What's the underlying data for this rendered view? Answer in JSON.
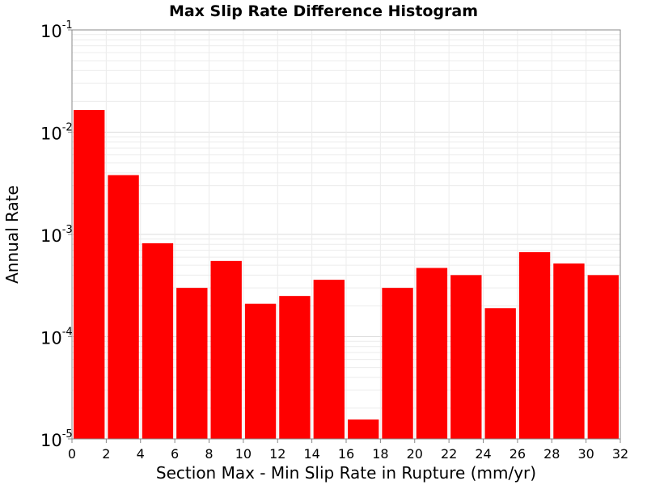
{
  "chart_data": {
    "type": "bar",
    "title": "Max Slip Rate Difference Histogram",
    "xlabel": "Section Max - Min Slip Rate in Rupture (mm/yr)",
    "ylabel": "Annual Rate",
    "xlim": [
      0,
      32
    ],
    "ylim": [
      1e-05,
      0.1
    ],
    "yscale": "log",
    "bin_width": 2,
    "x_ticks": [
      0,
      2,
      4,
      6,
      8,
      10,
      12,
      14,
      16,
      18,
      20,
      22,
      24,
      26,
      28,
      30,
      32
    ],
    "x_tick_labels": [
      "0",
      "2",
      "4",
      "6",
      "8",
      "10",
      "12",
      "14",
      "16",
      "18",
      "20",
      "22",
      "24",
      "26",
      "28",
      "30",
      "32"
    ],
    "y_ticks": [
      {
        "base": "10",
        "exp": "-1",
        "value": 0.1
      },
      {
        "base": "10",
        "exp": "-2",
        "value": 0.01
      },
      {
        "base": "10",
        "exp": "-3",
        "value": 0.001
      },
      {
        "base": "10",
        "exp": "-4",
        "value": 0.0001
      },
      {
        "base": "10",
        "exp": "-5",
        "value": 1e-05
      }
    ],
    "categories": [
      "0-2",
      "2-4",
      "4-6",
      "6-8",
      "8-10",
      "10-12",
      "12-14",
      "14-16",
      "16-18",
      "18-20",
      "20-22",
      "22-24",
      "24-26",
      "26-28",
      "28-30",
      "30-32"
    ],
    "series": [
      {
        "color": "#ff0000",
        "bin_starts": [
          0,
          2,
          4,
          6,
          8,
          10,
          12,
          14,
          16,
          18,
          20,
          22,
          24,
          26,
          28,
          30
        ],
        "values": [
          0.0165,
          0.0038,
          0.00082,
          0.0003,
          0.00055,
          0.00021,
          0.00025,
          0.00036,
          1.55e-05,
          0.0003,
          0.00047,
          0.0004,
          0.00019,
          0.00067,
          0.00052,
          0.0004
        ]
      }
    ],
    "grid": true
  }
}
